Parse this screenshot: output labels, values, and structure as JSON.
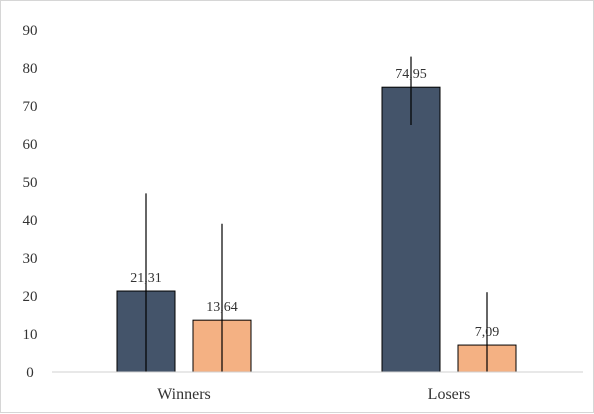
{
  "chart_data": {
    "type": "bar",
    "title": "",
    "xlabel": "",
    "ylabel": "",
    "categories": [
      "Winners",
      "Losers"
    ],
    "ylim": [
      0,
      90
    ],
    "yticks": [
      0,
      10,
      20,
      30,
      40,
      50,
      60,
      70,
      80,
      90
    ],
    "ytick_labels": [
      "0",
      "10",
      "20",
      "30",
      "40",
      "50",
      "60",
      "70",
      "80",
      "90"
    ],
    "grid": false,
    "legend": "none",
    "series": [
      {
        "color": "#44546a",
        "values": [
          21.31,
          74.95
        ],
        "labels": [
          "21,31",
          "74,95"
        ],
        "error_low": [
          0,
          65
        ],
        "error_high": [
          47,
          83
        ]
      },
      {
        "color": "#f4b183",
        "values": [
          13.64,
          7.09
        ],
        "labels": [
          "13,64",
          "7,09"
        ],
        "error_low": [
          0,
          0
        ],
        "error_high": [
          39,
          21
        ]
      }
    ]
  }
}
